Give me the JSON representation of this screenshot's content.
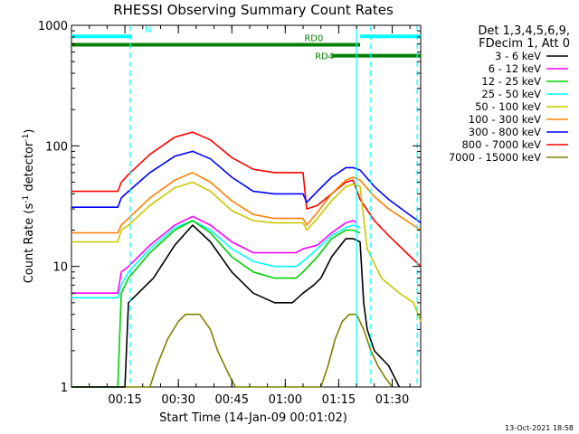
{
  "chart_data": {
    "type": "line",
    "title": "RHESSI Observing Summary Count Rates",
    "xlabel": "Start Time (14-Jan-09 00:01:02)",
    "ylabel_main": "Count Rate (s",
    "ylabel_sup1": "-1",
    "ylabel_mid": " detector",
    "ylabel_sup2": "-1",
    "ylabel_end": ")",
    "y_scale": "log",
    "ylim": [
      1,
      1000
    ],
    "xlim_minutes": [
      1,
      99
    ],
    "x_ticks": [
      {
        "m": 16,
        "label": "00:15"
      },
      {
        "m": 31,
        "label": "00:30"
      },
      {
        "m": 46,
        "label": "00:45"
      },
      {
        "m": 61,
        "label": "01:00"
      },
      {
        "m": 76,
        "label": "01:15"
      },
      {
        "m": 91,
        "label": "01:30"
      }
    ],
    "y_ticks": [
      {
        "v": 1,
        "label": "1"
      },
      {
        "v": 10,
        "label": "10"
      },
      {
        "v": 100,
        "label": "100"
      },
      {
        "v": 1000,
        "label": "1000"
      }
    ],
    "legend_header": [
      "Det 1,3,4,5,6,9,",
      "FDecim 1, Att 0"
    ],
    "series": [
      {
        "name": "3 - 6 keV",
        "color": "#000000",
        "x": [
          1,
          16,
          17,
          24,
          30,
          35,
          40,
          46,
          52,
          58,
          63,
          66,
          69,
          71,
          74,
          78,
          80,
          82,
          83,
          84,
          86,
          90,
          93
        ],
        "y": [
          1,
          1,
          5,
          8,
          15,
          22,
          16,
          9,
          6,
          5,
          5,
          6,
          7,
          8,
          12,
          17,
          17,
          16,
          5,
          3,
          2,
          1.5,
          1
        ]
      },
      {
        "name": "6 - 12 keV",
        "color": "#ff00ff",
        "x": [
          1,
          14,
          15,
          17,
          23,
          30,
          35,
          40,
          46,
          52,
          58,
          64,
          66,
          70,
          74,
          78,
          80,
          81
        ],
        "y": [
          6,
          6,
          9,
          10,
          15,
          22,
          26,
          22,
          16,
          13,
          13,
          13,
          14,
          15,
          19,
          23,
          24,
          23
        ]
      },
      {
        "name": "12 - 25 keV",
        "color": "#00d000",
        "x": [
          1,
          14,
          15,
          17,
          23,
          30,
          35,
          40,
          46,
          52,
          58,
          64,
          66,
          70,
          74,
          78,
          80,
          82
        ],
        "y": [
          1,
          1,
          6,
          8,
          13,
          20,
          24,
          19,
          12,
          9,
          8,
          8,
          9,
          12,
          17,
          20,
          20,
          19
        ]
      },
      {
        "name": "25 - 50 keV",
        "color": "#00ffff",
        "x": [
          1,
          14,
          15,
          17,
          23,
          30,
          35,
          40,
          46,
          52,
          58,
          64,
          66,
          70,
          74,
          78,
          80,
          82
        ],
        "y": [
          5.5,
          5.5,
          7,
          9,
          14,
          21,
          24,
          20,
          14,
          11,
          10,
          10,
          11,
          14,
          18,
          21,
          22,
          21
        ]
      },
      {
        "name": "50 - 100 keV",
        "color": "#c8c800",
        "x": [
          1,
          14,
          15,
          17,
          23,
          30,
          35,
          40,
          46,
          52,
          58,
          66,
          67,
          70,
          74,
          78,
          80,
          82,
          84,
          88,
          93,
          97,
          99
        ],
        "y": [
          16,
          16,
          20,
          22,
          32,
          45,
          50,
          42,
          29,
          24,
          23,
          23,
          20,
          25,
          35,
          46,
          48,
          46,
          14,
          8,
          6,
          5,
          3.5
        ]
      },
      {
        "name": "100 - 300 keV",
        "color": "#ff8000",
        "x": [
          1,
          14,
          15,
          17,
          23,
          30,
          35,
          40,
          46,
          52,
          58,
          66,
          67,
          70,
          74,
          78,
          80,
          82,
          86,
          90,
          95,
          99
        ],
        "y": [
          19,
          19,
          22,
          25,
          37,
          52,
          60,
          50,
          35,
          27,
          25,
          25,
          22,
          28,
          40,
          52,
          55,
          52,
          38,
          30,
          24,
          20
        ]
      },
      {
        "name": "300 - 800 keV",
        "color": "#0000ff",
        "x": [
          1,
          14,
          15,
          17,
          23,
          30,
          35,
          40,
          46,
          52,
          58,
          66,
          67,
          70,
          74,
          78,
          80,
          82,
          86,
          90,
          95,
          99
        ],
        "y": [
          31,
          31,
          37,
          42,
          60,
          82,
          90,
          78,
          55,
          42,
          40,
          40,
          34,
          42,
          55,
          66,
          66,
          63,
          46,
          36,
          28,
          23
        ]
      },
      {
        "name": "800 - 7000 keV",
        "color": "#ff0000",
        "x": [
          1,
          14,
          15,
          17,
          23,
          30,
          35,
          40,
          46,
          52,
          58,
          66,
          67,
          70,
          74,
          78,
          80,
          82,
          86,
          90,
          95,
          99
        ],
        "y": [
          42,
          42,
          50,
          58,
          85,
          118,
          130,
          112,
          80,
          64,
          60,
          60,
          30,
          32,
          40,
          50,
          52,
          36,
          24,
          18,
          13,
          10
        ]
      },
      {
        "name": "7000 - 15000 keV",
        "color": "#808000",
        "x": [
          1,
          23,
          25,
          28,
          31,
          33,
          37,
          40,
          42,
          45,
          47,
          71,
          73,
          75,
          77,
          79,
          81,
          83,
          85,
          87,
          89,
          91
        ],
        "y": [
          1,
          1,
          1.5,
          2.5,
          3.5,
          4,
          4,
          3,
          2,
          1.3,
          1,
          1,
          1.5,
          2.5,
          3.5,
          4,
          4,
          3,
          2,
          1.5,
          1.2,
          1
        ]
      }
    ],
    "markers": [
      {
        "label": "N",
        "color": "#00ffff",
        "level": 810,
        "x_start": 1,
        "x_end": 18,
        "label_at": 22.5
      },
      {
        "label": "",
        "color": "#00ffff",
        "level": 810,
        "x_start": 82,
        "x_end": 99
      },
      {
        "label": "RD0",
        "color": "#008000",
        "level": 690,
        "x_start": 1,
        "x_end": 82,
        "label_at": 69
      },
      {
        "label": "RD4",
        "color": "#008000",
        "level": 560,
        "x_start": 74,
        "x_end": 99,
        "label_at": 72
      }
    ],
    "vlines": [
      {
        "m": 17.5,
        "color": "#00ffff",
        "dashed": true
      },
      {
        "m": 81,
        "color": "#00ffff",
        "dashed": false
      },
      {
        "m": 85,
        "color": "#00ffff",
        "dashed": true
      },
      {
        "m": 98,
        "color": "#00ffff",
        "dashed": true
      }
    ],
    "grid": false,
    "legend_position": "right"
  },
  "footer_date": "13-Oct-2021 18:58"
}
